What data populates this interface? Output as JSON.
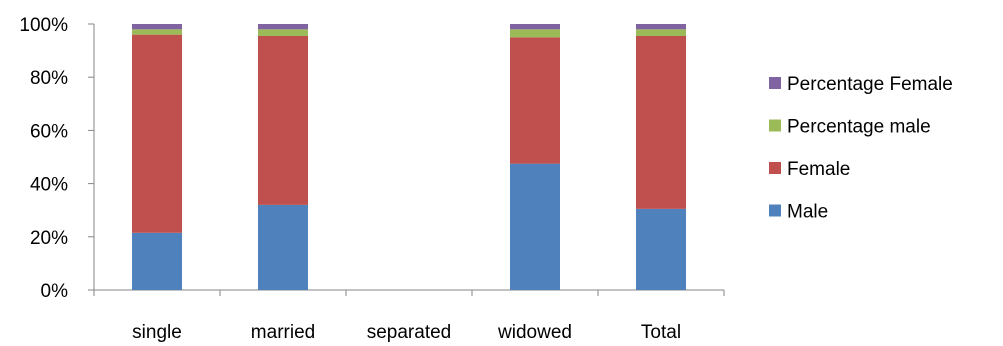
{
  "chart_data": {
    "type": "bar",
    "stacked": true,
    "percent_stacked": true,
    "categories": [
      "single",
      "married",
      "separated",
      "widowed",
      "Total"
    ],
    "series": [
      {
        "name": "Male",
        "color": "#4F81BD",
        "values": [
          21.5,
          32,
          0,
          47.5,
          30.5
        ]
      },
      {
        "name": "Female",
        "color": "#C0504D",
        "values": [
          74.5,
          63.5,
          0,
          47.5,
          65
        ]
      },
      {
        "name": "Percentage male",
        "color": "#9BBB59",
        "values": [
          2,
          2.5,
          0,
          3,
          2.5
        ]
      },
      {
        "name": "Percentage  Female",
        "color": "#8064A2",
        "values": [
          2,
          2,
          0,
          2,
          2
        ]
      }
    ],
    "y_ticks": [
      "0%",
      "20%",
      "40%",
      "60%",
      "80%",
      "100%"
    ],
    "ylim": [
      0,
      100
    ],
    "grid": false,
    "legend_position": "right",
    "legend_order": [
      "Percentage  Female",
      "Percentage male",
      "Female",
      "Male"
    ]
  }
}
